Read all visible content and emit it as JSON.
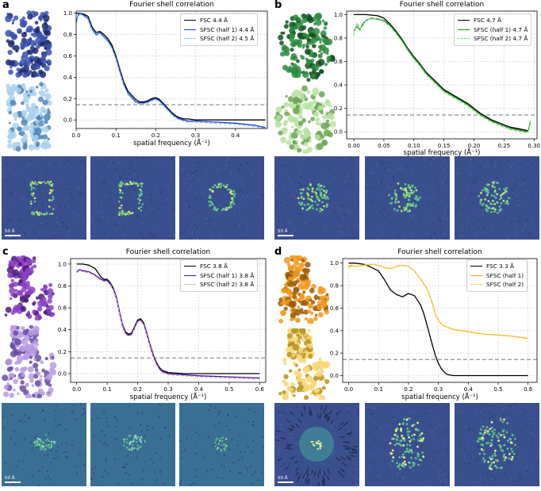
{
  "chart_data": [
    {
      "panel": "a",
      "type": "line",
      "title": "Fourier shell correlation",
      "xlabel": "spatial frequency (Å⁻¹)",
      "xlim": [
        0,
        0.48
      ],
      "ylim": [
        -0.08,
        1.02
      ],
      "xticks": [
        0.0,
        0.1,
        0.2,
        0.3,
        0.4
      ],
      "xtick_labels": [
        "0.0",
        "0.1",
        "0.2",
        "0.3",
        "0.4"
      ],
      "yticks": [
        0.0,
        0.2,
        0.4,
        0.6,
        0.8,
        1.0
      ],
      "ytick_labels": [
        "0.0",
        "0.2",
        "0.4",
        "0.6",
        "0.8",
        "1.0"
      ],
      "threshold": 0.143,
      "series": [
        {
          "name": "FSC 4.4 Å",
          "color": "#000000",
          "dash": "",
          "x": [
            0,
            0.01,
            0.02,
            0.03,
            0.04,
            0.05,
            0.06,
            0.07,
            0.08,
            0.09,
            0.1,
            0.11,
            0.12,
            0.13,
            0.14,
            0.15,
            0.16,
            0.17,
            0.18,
            0.19,
            0.2,
            0.21,
            0.22,
            0.23,
            0.24,
            0.25,
            0.26,
            0.27,
            0.28,
            0.3,
            0.35,
            0.4,
            0.45,
            0.475
          ],
          "y": [
            1.0,
            1.0,
            0.99,
            0.97,
            0.87,
            0.82,
            0.83,
            0.8,
            0.76,
            0.7,
            0.6,
            0.47,
            0.35,
            0.27,
            0.23,
            0.19,
            0.17,
            0.17,
            0.18,
            0.2,
            0.21,
            0.19,
            0.15,
            0.11,
            0.07,
            0.04,
            0.02,
            0.01,
            0.01,
            0.0,
            0.0,
            0.0,
            0.0,
            0.0
          ]
        },
        {
          "name": "SFSC (half 1) 4.4 Å",
          "color": "#1f3fd6",
          "dash": "",
          "x": [
            0,
            0.005,
            0.01,
            0.02,
            0.03,
            0.04,
            0.05,
            0.06,
            0.07,
            0.08,
            0.09,
            0.1,
            0.11,
            0.12,
            0.13,
            0.14,
            0.15,
            0.16,
            0.17,
            0.18,
            0.19,
            0.2,
            0.21,
            0.22,
            0.23,
            0.24,
            0.25,
            0.26,
            0.27,
            0.28,
            0.3,
            0.35,
            0.4,
            0.45,
            0.475
          ],
          "y": [
            0.92,
            0.98,
            1.0,
            0.98,
            0.95,
            0.85,
            0.8,
            0.82,
            0.78,
            0.74,
            0.68,
            0.58,
            0.45,
            0.33,
            0.25,
            0.21,
            0.17,
            0.16,
            0.16,
            0.17,
            0.19,
            0.2,
            0.18,
            0.14,
            0.1,
            0.06,
            0.03,
            0.01,
            0.0,
            -0.01,
            -0.01,
            -0.02,
            -0.03,
            -0.05,
            -0.07
          ]
        },
        {
          "name": "SFSC (half 2) 4.5 Å",
          "color": "#7ec2f0",
          "dash": "4,2",
          "x": [
            0,
            0.005,
            0.01,
            0.02,
            0.03,
            0.04,
            0.05,
            0.06,
            0.07,
            0.08,
            0.09,
            0.1,
            0.11,
            0.12,
            0.13,
            0.14,
            0.15,
            0.16,
            0.17,
            0.18,
            0.19,
            0.2,
            0.21,
            0.22,
            0.23,
            0.24,
            0.25,
            0.26,
            0.27,
            0.28,
            0.3,
            0.35,
            0.4,
            0.45,
            0.475
          ],
          "y": [
            0.9,
            0.97,
            0.99,
            0.97,
            0.94,
            0.84,
            0.79,
            0.81,
            0.77,
            0.73,
            0.67,
            0.57,
            0.44,
            0.32,
            0.24,
            0.2,
            0.16,
            0.15,
            0.15,
            0.16,
            0.18,
            0.19,
            0.17,
            0.13,
            0.09,
            0.05,
            0.02,
            0.0,
            -0.01,
            -0.02,
            -0.02,
            -0.03,
            -0.04,
            -0.06,
            -0.08
          ]
        }
      ]
    },
    {
      "panel": "b",
      "type": "line",
      "title": "Fourier shell correlation",
      "xlabel": "spatial frequency (Å⁻¹)",
      "xlim": [
        -0.012,
        0.305
      ],
      "ylim": [
        -0.06,
        1.03
      ],
      "xticks": [
        0.0,
        0.05,
        0.1,
        0.15,
        0.2,
        0.25,
        0.3
      ],
      "xtick_labels": [
        "0.00",
        "0.05",
        "0.10",
        "0.15",
        "0.20",
        "0.25",
        "0.30"
      ],
      "yticks": [
        0.0,
        0.2,
        0.4,
        0.6,
        0.8,
        1.0
      ],
      "ytick_labels": [
        "0.0",
        "0.2",
        "0.4",
        "0.6",
        "0.8",
        "1.0"
      ],
      "threshold": 0.143,
      "series": [
        {
          "name": "FSC 4.7 Å",
          "color": "#000000",
          "dash": "",
          "x": [
            0,
            0.02,
            0.04,
            0.05,
            0.06,
            0.07,
            0.08,
            0.09,
            0.1,
            0.11,
            0.12,
            0.13,
            0.14,
            0.15,
            0.16,
            0.17,
            0.18,
            0.19,
            0.2,
            0.21,
            0.22,
            0.23,
            0.24,
            0.25,
            0.26,
            0.27,
            0.28,
            0.29
          ],
          "y": [
            1.0,
            1.0,
            0.99,
            0.97,
            0.92,
            0.86,
            0.79,
            0.71,
            0.64,
            0.58,
            0.51,
            0.46,
            0.41,
            0.36,
            0.33,
            0.3,
            0.27,
            0.24,
            0.2,
            0.16,
            0.13,
            0.1,
            0.08,
            0.06,
            0.04,
            0.03,
            0.02,
            0.01
          ]
        },
        {
          "name": "SFSC (half 1) 4.7 Å",
          "color": "#1e8f1e",
          "dash": "",
          "x": [
            0,
            0.005,
            0.01,
            0.015,
            0.02,
            0.03,
            0.04,
            0.05,
            0.06,
            0.07,
            0.08,
            0.09,
            0.1,
            0.11,
            0.12,
            0.13,
            0.14,
            0.15,
            0.16,
            0.17,
            0.18,
            0.19,
            0.2,
            0.21,
            0.22,
            0.23,
            0.24,
            0.25,
            0.26,
            0.27,
            0.28,
            0.29,
            0.292,
            0.294
          ],
          "y": [
            0.86,
            0.9,
            0.87,
            0.92,
            0.95,
            0.97,
            0.96,
            0.95,
            0.91,
            0.85,
            0.78,
            0.7,
            0.63,
            0.57,
            0.5,
            0.45,
            0.4,
            0.35,
            0.32,
            0.29,
            0.26,
            0.23,
            0.19,
            0.15,
            0.12,
            0.09,
            0.07,
            0.05,
            0.03,
            0.02,
            0.01,
            0.0,
            0.05,
            0.08
          ]
        },
        {
          "name": "SFSC (half 2) 4.7 Å",
          "color": "#7fe07f",
          "dash": "4,2",
          "x": [
            0,
            0.005,
            0.01,
            0.015,
            0.02,
            0.03,
            0.04,
            0.05,
            0.06,
            0.07,
            0.08,
            0.09,
            0.1,
            0.11,
            0.12,
            0.13,
            0.14,
            0.15,
            0.16,
            0.17,
            0.18,
            0.19,
            0.2,
            0.21,
            0.22,
            0.23,
            0.24,
            0.25,
            0.26,
            0.27,
            0.28,
            0.29,
            0.292,
            0.294
          ],
          "y": [
            0.82,
            0.93,
            0.88,
            0.9,
            0.96,
            0.96,
            0.97,
            0.94,
            0.9,
            0.84,
            0.77,
            0.69,
            0.62,
            0.56,
            0.49,
            0.44,
            0.39,
            0.34,
            0.31,
            0.28,
            0.25,
            0.22,
            0.18,
            0.14,
            0.11,
            0.08,
            0.06,
            0.04,
            0.02,
            0.01,
            0.0,
            -0.01,
            0.06,
            0.1
          ]
        }
      ]
    },
    {
      "panel": "c",
      "type": "line",
      "title": "Fourier shell correlation",
      "xlabel": "spatial frequency (Å⁻¹)",
      "xlim": [
        -0.02,
        0.62
      ],
      "ylim": [
        -0.08,
        1.05
      ],
      "xticks": [
        0.0,
        0.1,
        0.2,
        0.3,
        0.4,
        0.5,
        0.6
      ],
      "xtick_labels": [
        "0.0",
        "0.1",
        "0.2",
        "0.3",
        "0.4",
        "0.5",
        "0.6"
      ],
      "yticks": [
        0.0,
        0.2,
        0.4,
        0.6,
        0.8,
        1.0
      ],
      "ytick_labels": [
        "0.0",
        "0.2",
        "0.4",
        "0.6",
        "0.8",
        "1.0"
      ],
      "threshold": 0.143,
      "series": [
        {
          "name": "FSC 3.8 Å",
          "color": "#000000",
          "dash": "",
          "x": [
            0,
            0.02,
            0.04,
            0.06,
            0.08,
            0.09,
            0.1,
            0.11,
            0.12,
            0.13,
            0.14,
            0.15,
            0.16,
            0.17,
            0.18,
            0.19,
            0.2,
            0.21,
            0.22,
            0.23,
            0.24,
            0.25,
            0.26,
            0.27,
            0.28,
            0.3,
            0.35,
            0.4,
            0.5,
            0.6
          ],
          "y": [
            1.0,
            1.0,
            0.99,
            0.96,
            0.88,
            0.86,
            0.86,
            0.83,
            0.78,
            0.7,
            0.57,
            0.45,
            0.38,
            0.36,
            0.37,
            0.43,
            0.49,
            0.5,
            0.46,
            0.37,
            0.27,
            0.18,
            0.11,
            0.06,
            0.03,
            0.01,
            0.0,
            0.0,
            0.0,
            0.0
          ]
        },
        {
          "name": "SFSC (half 1) 3.8 Å",
          "color": "#4a1a8a",
          "dash": "",
          "x": [
            0,
            0.01,
            0.02,
            0.04,
            0.06,
            0.08,
            0.09,
            0.1,
            0.11,
            0.12,
            0.13,
            0.14,
            0.15,
            0.16,
            0.17,
            0.18,
            0.19,
            0.2,
            0.21,
            0.22,
            0.23,
            0.24,
            0.25,
            0.26,
            0.27,
            0.28,
            0.3,
            0.35,
            0.4,
            0.5,
            0.6
          ],
          "y": [
            0.93,
            0.95,
            0.94,
            0.93,
            0.9,
            0.86,
            0.85,
            0.85,
            0.82,
            0.77,
            0.69,
            0.56,
            0.44,
            0.37,
            0.35,
            0.36,
            0.42,
            0.48,
            0.49,
            0.45,
            0.36,
            0.26,
            0.17,
            0.1,
            0.05,
            0.02,
            0.0,
            -0.01,
            -0.02,
            -0.03,
            -0.04
          ]
        },
        {
          "name": "SFSC (half 2) 3.8 Å",
          "color": "#cfa6e6",
          "dash": "4,2",
          "x": [
            0,
            0.01,
            0.02,
            0.04,
            0.06,
            0.08,
            0.09,
            0.1,
            0.11,
            0.12,
            0.13,
            0.14,
            0.15,
            0.16,
            0.17,
            0.18,
            0.19,
            0.2,
            0.21,
            0.22,
            0.23,
            0.24,
            0.25,
            0.26,
            0.27,
            0.28,
            0.3,
            0.35,
            0.4,
            0.5,
            0.6
          ],
          "y": [
            0.92,
            0.94,
            0.93,
            0.92,
            0.89,
            0.85,
            0.84,
            0.84,
            0.81,
            0.76,
            0.68,
            0.55,
            0.43,
            0.36,
            0.34,
            0.35,
            0.41,
            0.47,
            0.48,
            0.44,
            0.35,
            0.25,
            0.16,
            0.09,
            0.04,
            0.01,
            -0.01,
            -0.02,
            -0.03,
            -0.04,
            -0.05
          ]
        }
      ]
    },
    {
      "panel": "d",
      "type": "line",
      "title": "Fourier shell correlation",
      "xlabel": "spatial frequency (Å⁻¹)",
      "xlim": [
        -0.02,
        0.63
      ],
      "ylim": [
        -0.06,
        1.04
      ],
      "xticks": [
        0.0,
        0.1,
        0.2,
        0.3,
        0.4,
        0.5,
        0.6
      ],
      "xtick_labels": [
        "0.0",
        "0.1",
        "0.2",
        "0.3",
        "0.4",
        "0.5",
        "0.6"
      ],
      "yticks": [
        0.0,
        0.2,
        0.4,
        0.6,
        0.8,
        1.0
      ],
      "ytick_labels": [
        "0.0",
        "0.2",
        "0.4",
        "0.6",
        "0.8",
        "1.0"
      ],
      "threshold": 0.143,
      "series": [
        {
          "name": "FSC 3.3 Å",
          "color": "#000000",
          "dash": "",
          "x": [
            0,
            0.02,
            0.05,
            0.07,
            0.1,
            0.12,
            0.14,
            0.16,
            0.18,
            0.2,
            0.22,
            0.24,
            0.25,
            0.26,
            0.27,
            0.28,
            0.29,
            0.3,
            0.31,
            0.32,
            0.33,
            0.35,
            0.4,
            0.5,
            0.6
          ],
          "y": [
            1.0,
            1.0,
            0.99,
            0.97,
            0.93,
            0.85,
            0.76,
            0.72,
            0.7,
            0.73,
            0.71,
            0.63,
            0.56,
            0.47,
            0.37,
            0.27,
            0.18,
            0.11,
            0.06,
            0.03,
            0.01,
            0.0,
            0.0,
            0.0,
            0.0
          ]
        },
        {
          "name": "SFSC (half 1)",
          "color": "#f5a623",
          "dash": "",
          "x": [
            0,
            0.01,
            0.02,
            0.05,
            0.08,
            0.1,
            0.12,
            0.14,
            0.16,
            0.18,
            0.2,
            0.22,
            0.24,
            0.25,
            0.26,
            0.27,
            0.28,
            0.29,
            0.3,
            0.31,
            0.32,
            0.35,
            0.4,
            0.45,
            0.5,
            0.55,
            0.6
          ],
          "y": [
            0.97,
            0.98,
            0.97,
            0.98,
            0.99,
            0.98,
            0.96,
            0.95,
            0.97,
            0.98,
            0.97,
            0.93,
            0.86,
            0.82,
            0.78,
            0.72,
            0.64,
            0.55,
            0.49,
            0.46,
            0.44,
            0.41,
            0.39,
            0.37,
            0.36,
            0.35,
            0.33
          ]
        },
        {
          "name": "SFSC (half 2)",
          "color": "#f7d13a",
          "dash": "4,2",
          "x": [
            0,
            0.01,
            0.02,
            0.05,
            0.08,
            0.1,
            0.12,
            0.14,
            0.16,
            0.18,
            0.2,
            0.22,
            0.24,
            0.25,
            0.26,
            0.27,
            0.28,
            0.29,
            0.3,
            0.31,
            0.32,
            0.35,
            0.4,
            0.45,
            0.5,
            0.55,
            0.6
          ],
          "y": [
            0.96,
            0.97,
            0.97,
            0.98,
            0.99,
            0.98,
            0.96,
            0.95,
            0.97,
            0.98,
            0.97,
            0.93,
            0.86,
            0.82,
            0.78,
            0.72,
            0.64,
            0.55,
            0.49,
            0.46,
            0.44,
            0.41,
            0.39,
            0.37,
            0.36,
            0.35,
            0.33
          ]
        }
      ]
    }
  ],
  "panels": {
    "a": {
      "label": "a",
      "model_top": "#3a54b0",
      "model_top_dark": "#1c2b6e",
      "model_bottom": "#a8d0ee",
      "model_bottom_dark": "#4e86b8",
      "scale_label": "50 Å"
    },
    "b": {
      "label": "b",
      "model_top": "#2a8c3c",
      "model_top_dark": "#13501d",
      "model_bottom": "#b9e3a0",
      "model_bottom_dark": "#6aa455",
      "scale_label": "50 Å"
    },
    "c": {
      "label": "c",
      "model_top": "#8b3fc4",
      "model_top_dark": "#4a1a78",
      "model_bottom": "#b89be0",
      "model_bottom_dark": "#6a4ea6",
      "scale_label": "50 Å"
    },
    "d": {
      "label": "d",
      "model_top": "#f29a1f",
      "model_top_dark": "#9a5a06",
      "model_bottom": "#f7d774",
      "model_bottom_dark": "#b99320",
      "scale_label": "50 Å"
    }
  },
  "colors": {
    "slice_bg": "#3a4f8e",
    "slice_feature": "#5fc08a",
    "grid": "#c8c8c8",
    "threshold": "#777777"
  }
}
